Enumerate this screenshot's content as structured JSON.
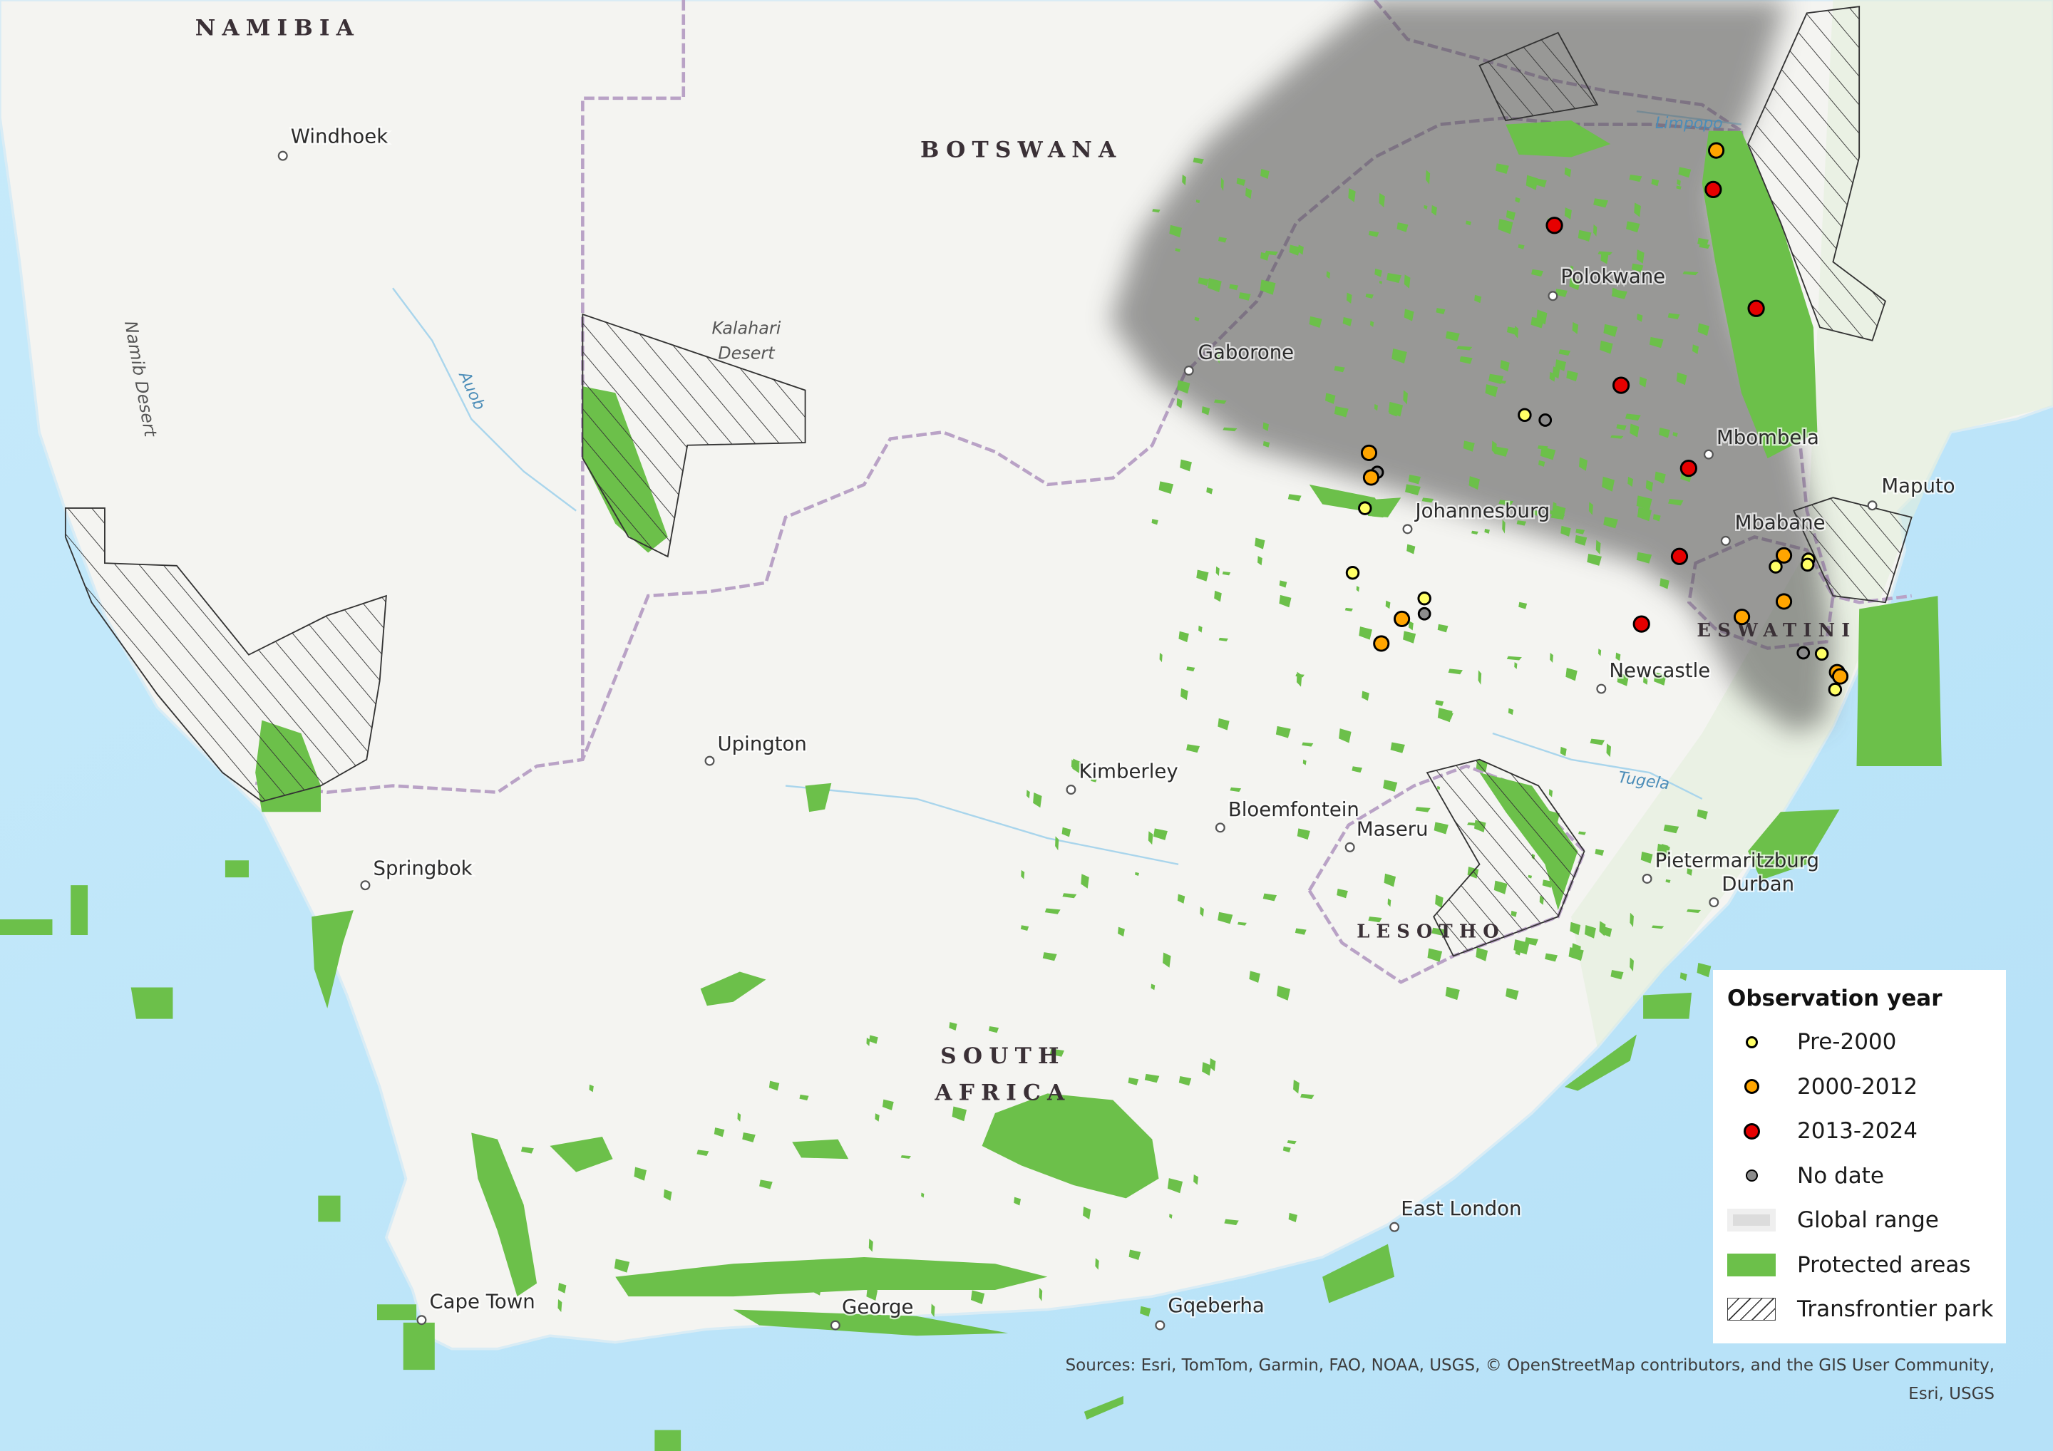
{
  "map": {
    "countries": [
      "NAMIBIA",
      "BOTSWANA",
      "SOUTH",
      "AFRICA",
      "LESOTHO",
      "ESWATINI"
    ],
    "cities": [
      "Windhoek",
      "Gaborone",
      "Polokwane",
      "Johannesburg",
      "Mbombela",
      "Maputo",
      "Mbabane",
      "Newcastle",
      "Upington",
      "Kimberley",
      "Bloemfontein",
      "Maseru",
      "Springbok",
      "Pietermaritzburg",
      "Durban",
      "East London",
      "Cape Town",
      "George",
      "Gqeberha"
    ],
    "physical": [
      "Kalahari",
      "Desert",
      "Namib Desert"
    ],
    "rivers": [
      "Auob",
      "Limpopo",
      "Tugela"
    ],
    "colors": {
      "ocean": "#bfe6f9",
      "land": "#f4f4f1",
      "protected": "#6cc04a",
      "range": "#4d4d4d",
      "border": "#b9a2c6",
      "pre2000": "#ffff66",
      "y2000_2012": "#ffa500",
      "y2013_2024": "#e60000",
      "nodate": "#8c8c8c"
    },
    "observations": [
      {
        "lon": 31.06,
        "lat": -22.51,
        "period": "2000-2012"
      },
      {
        "lon": 31.03,
        "lat": -22.89,
        "period": "2013-2024"
      },
      {
        "lon": 29.48,
        "lat": -23.24,
        "period": "2013-2024"
      },
      {
        "lon": 31.45,
        "lat": -24.05,
        "period": "2013-2024"
      },
      {
        "lon": 30.13,
        "lat": -24.8,
        "period": "2013-2024"
      },
      {
        "lon": 29.19,
        "lat": -25.09,
        "period": "Pre-2000"
      },
      {
        "lon": 29.39,
        "lat": -25.14,
        "period": "No date"
      },
      {
        "lon": 27.67,
        "lat": -25.46,
        "period": "2000-2012"
      },
      {
        "lon": 27.75,
        "lat": -25.65,
        "period": "No date"
      },
      {
        "lon": 27.69,
        "lat": -25.7,
        "period": "2000-2012"
      },
      {
        "lon": 27.63,
        "lat": -26.0,
        "period": "Pre-2000"
      },
      {
        "lon": 30.79,
        "lat": -25.61,
        "period": "2013-2024"
      },
      {
        "lon": 27.51,
        "lat": -26.63,
        "period": "Pre-2000"
      },
      {
        "lon": 30.7,
        "lat": -26.47,
        "period": "2013-2024"
      },
      {
        "lon": 31.72,
        "lat": -26.46,
        "period": "2000-2012"
      },
      {
        "lon": 31.64,
        "lat": -26.57,
        "period": "Pre-2000"
      },
      {
        "lon": 31.96,
        "lat": -26.5,
        "period": "Pre-2000"
      },
      {
        "lon": 31.95,
        "lat": -26.55,
        "period": "Pre-2000"
      },
      {
        "lon": 28.21,
        "lat": -26.88,
        "period": "Pre-2000"
      },
      {
        "lon": 28.21,
        "lat": -27.03,
        "period": "No date"
      },
      {
        "lon": 27.99,
        "lat": -27.08,
        "period": "2000-2012"
      },
      {
        "lon": 27.79,
        "lat": -27.32,
        "period": "2000-2012"
      },
      {
        "lon": 30.33,
        "lat": -27.13,
        "period": "2013-2024"
      },
      {
        "lon": 31.31,
        "lat": -27.06,
        "period": "2000-2012"
      },
      {
        "lon": 31.72,
        "lat": -26.91,
        "period": "2000-2012"
      },
      {
        "lon": 31.91,
        "lat": -27.41,
        "period": "No date"
      },
      {
        "lon": 32.09,
        "lat": -27.42,
        "period": "Pre-2000"
      },
      {
        "lon": 32.24,
        "lat": -27.6,
        "period": "2000-2012"
      },
      {
        "lon": 32.27,
        "lat": -27.64,
        "period": "2000-2012"
      },
      {
        "lon": 32.22,
        "lat": -27.77,
        "period": "Pre-2000"
      }
    ]
  },
  "legend": {
    "title": "Observation year",
    "items": [
      {
        "label": "Pre-2000",
        "icon": "yellow-dot"
      },
      {
        "label": "2000-2012",
        "icon": "orange-dot"
      },
      {
        "label": "2013-2024",
        "icon": "red-dot"
      },
      {
        "label": "No date",
        "icon": "grey-dot"
      },
      {
        "label": "Global range",
        "icon": "grey-shade"
      },
      {
        "label": "Protected areas",
        "icon": "green-fill"
      },
      {
        "label": "Transfrontier park",
        "icon": "hatch"
      }
    ]
  },
  "sources": {
    "line1": "Sources: Esri, TomTom, Garmin, FAO, NOAA, USGS, © OpenStreetMap contributors, and the GIS User Community,",
    "line2": "Esri, USGS"
  }
}
